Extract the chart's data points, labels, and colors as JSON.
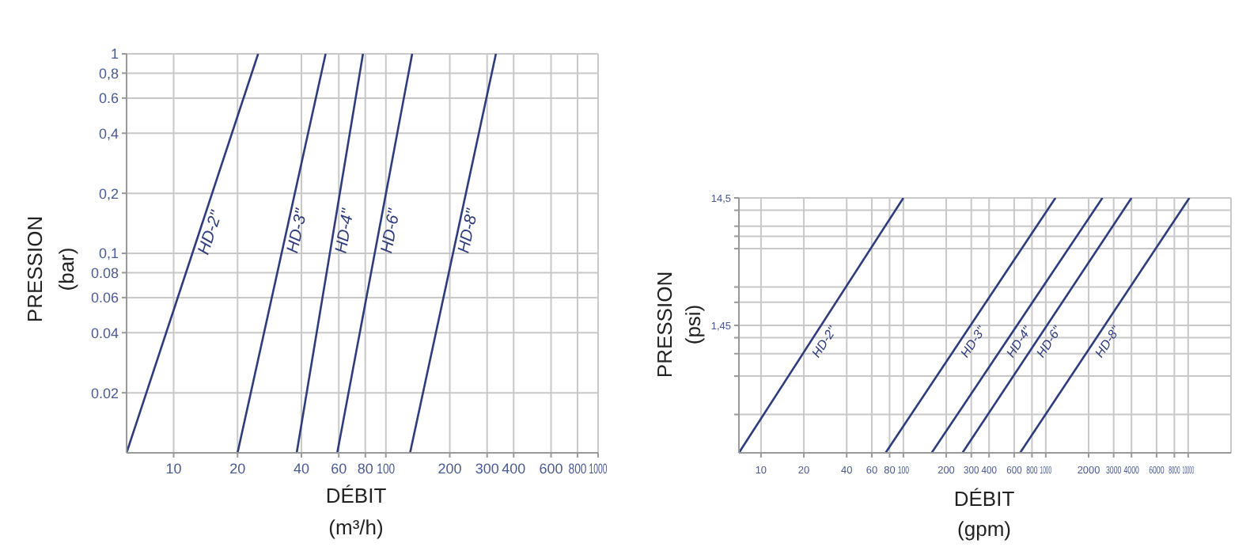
{
  "chart_data": [
    {
      "type": "line",
      "xlabel": "DÉBIT\n(m³/h)",
      "ylabel": "PRESSION\n(bar)",
      "log": "xy",
      "grid": true,
      "marker": "none",
      "line_style": "solid",
      "xlim": [
        6,
        1000
      ],
      "ylim": [
        0.01,
        1
      ],
      "xticks": [
        10,
        20,
        40,
        60,
        80,
        100,
        200,
        300,
        400,
        600,
        800,
        1000
      ],
      "yticks": [
        {
          "value": 0.02,
          "label": "0.02"
        },
        {
          "value": 0.04,
          "label": "0.04"
        },
        {
          "value": 0.06,
          "label": "0.06"
        },
        {
          "value": 0.08,
          "label": "0.08"
        },
        {
          "value": 0.1,
          "label": "0,1"
        },
        {
          "value": 0.2,
          "label": "0,2"
        },
        {
          "value": 0.4,
          "label": "0,4"
        },
        {
          "value": 0.6,
          "label": "0.6"
        },
        {
          "value": 0.8,
          "label": "0,8"
        },
        1
      ],
      "series": [
        {
          "name": "HD-2\"",
          "color": "#2e3b7c",
          "x": [
            6,
            25
          ],
          "values": [
            0.01,
            1
          ]
        },
        {
          "name": "HD-3\"",
          "color": "#2e3b7c",
          "x": [
            20,
            52
          ],
          "values": [
            0.01,
            1
          ]
        },
        {
          "name": "HD-4\"",
          "color": "#2e3b7c",
          "x": [
            38,
            78
          ],
          "values": [
            0.01,
            1
          ]
        },
        {
          "name": "HD-6\"",
          "color": "#2e3b7c",
          "x": [
            59,
            133
          ],
          "values": [
            0.01,
            1
          ]
        },
        {
          "name": "HD-8\"",
          "color": "#2e3b7c",
          "x": [
            130,
            330
          ],
          "values": [
            0.01,
            1
          ]
        }
      ]
    },
    {
      "type": "line",
      "xlabel": "DÉBIT\n(gpm)",
      "ylabel": "PRESSION\n(psi)",
      "log": "xy",
      "grid": true,
      "marker": "none",
      "line_style": "solid",
      "xlim": [
        7,
        20000
      ],
      "ylim": [
        0.145,
        14.5
      ],
      "xticks": [
        10,
        20,
        40,
        60,
        80,
        100,
        200,
        300,
        400,
        600,
        800,
        1000,
        2000,
        3000,
        4000,
        6000,
        8000,
        10000
      ],
      "yticks": [
        {
          "value": 0.29,
          "label": null
        },
        {
          "value": 0.58,
          "label": null
        },
        {
          "value": 0.87,
          "label": null
        },
        {
          "value": 1.16,
          "label": null
        },
        {
          "value": 1.45,
          "label": "1,45"
        },
        {
          "value": 2.2,
          "label": null
        },
        {
          "value": 2.9,
          "label": null
        },
        {
          "value": 5.8,
          "label": null
        },
        {
          "value": 7.25,
          "label": null
        },
        {
          "value": 8.7,
          "label": null
        },
        {
          "value": 11.6,
          "label": null
        },
        {
          "value": 14.5,
          "label": "14,5"
        }
      ],
      "series": [
        {
          "name": "HD-2\"",
          "color": "#2e3b7c",
          "x": [
            7,
            100
          ],
          "values": [
            0.145,
            14.5
          ]
        },
        {
          "name": "HD-3\"",
          "color": "#2e3b7c",
          "x": [
            75,
            1170
          ],
          "values": [
            0.145,
            14.5
          ]
        },
        {
          "name": "HD-4\"",
          "color": "#2e3b7c",
          "x": [
            158,
            2500
          ],
          "values": [
            0.145,
            14.5
          ]
        },
        {
          "name": "HD-6\"",
          "color": "#2e3b7c",
          "x": [
            260,
            4000
          ],
          "values": [
            0.145,
            14.5
          ]
        },
        {
          "name": "HD-8\"",
          "color": "#2e3b7c",
          "x": [
            660,
            10200
          ],
          "values": [
            0.145,
            14.5
          ]
        }
      ]
    }
  ]
}
